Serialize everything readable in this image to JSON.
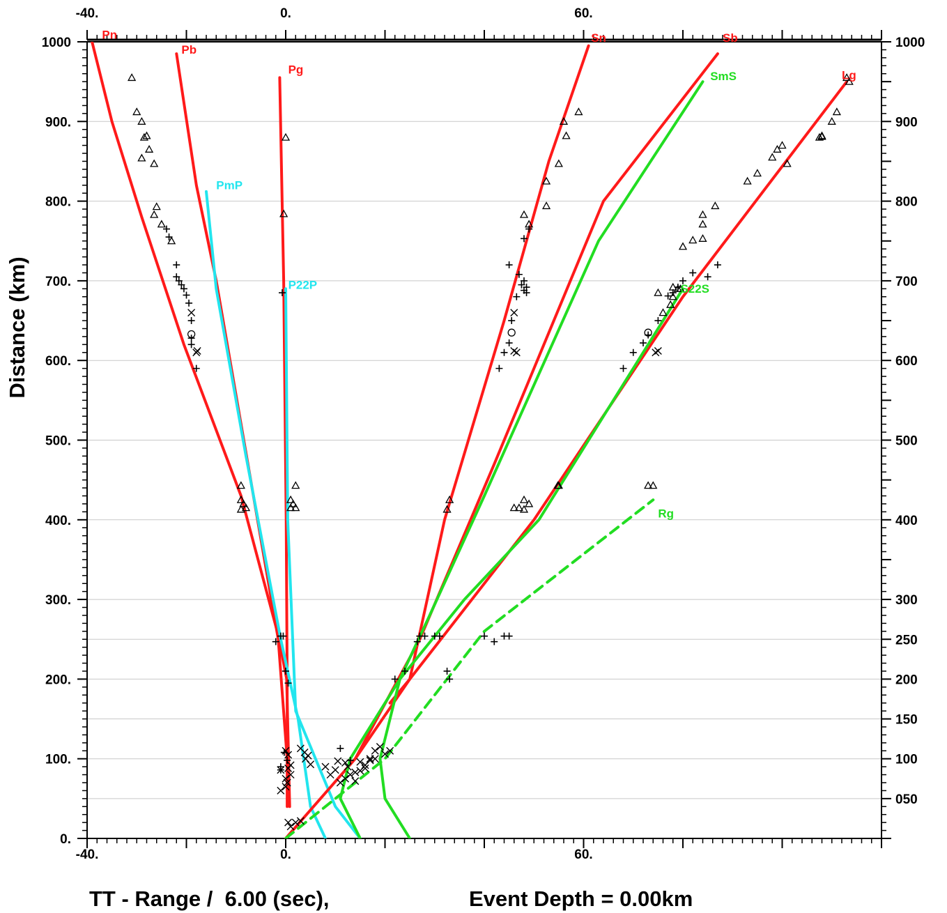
{
  "chart_data": {
    "type": "scatter",
    "title": "",
    "xlabel": "TT - Range /  6.00 (sec),",
    "ylabel": "Distance (km)",
    "depth_label": "Event Depth = 0.00km",
    "xlim": [
      -40,
      120
    ],
    "ylim": [
      0,
      1000
    ],
    "x_ticks": [
      "-40.",
      "0.",
      "60."
    ],
    "x_tick_values": [
      -40,
      0,
      60
    ],
    "y_ticks_left": [
      "0.",
      "100.",
      "200.",
      "300.",
      "400.",
      "500.",
      "600.",
      "700.",
      "800.",
      "900.",
      "1000"
    ],
    "y_tick_values_left": [
      0,
      100,
      200,
      300,
      400,
      500,
      600,
      700,
      800,
      900,
      1000
    ],
    "y_ticks_right": [
      "050",
      "100",
      "150",
      "200",
      "250",
      "300",
      "400",
      "500",
      "600",
      "700",
      "800",
      "900",
      "1000"
    ],
    "y_tick_values_right": [
      50,
      100,
      150,
      200,
      250,
      300,
      400,
      500,
      600,
      700,
      800,
      900,
      1000
    ],
    "grid": true,
    "colors": {
      "P_crust": "#ff1a1a",
      "S_crust": "#22dd22",
      "P_reflect": "#22e5ee",
      "picks": "#000000"
    },
    "series": [
      {
        "name": "Pn",
        "color": "#ff1a1a",
        "style": "solid",
        "points": [
          [
            0.8,
            40
          ],
          [
            0.2,
            200
          ],
          [
            -1.5,
            255
          ],
          [
            -9,
            430
          ],
          [
            -20.5,
            620
          ],
          [
            -29,
            780
          ],
          [
            -35,
            900
          ],
          [
            -39,
            1000
          ]
        ]
      },
      {
        "name": "Pb",
        "color": "#ff1a1a",
        "style": "solid",
        "points": [
          [
            0.3,
            100
          ],
          [
            -1.5,
            250
          ],
          [
            -14,
            700
          ],
          [
            -18,
            820
          ],
          [
            -22,
            985
          ]
        ]
      },
      {
        "name": "Pg",
        "color": "#ff1a1a",
        "style": "solid",
        "points": [
          [
            0.3,
            40
          ],
          [
            0.3,
            200
          ],
          [
            0.1,
            400
          ],
          [
            -0.4,
            700
          ],
          [
            -1.2,
            955
          ]
        ]
      },
      {
        "name": "PmP",
        "color": "#22e5ee",
        "style": "solid",
        "points": [
          [
            8,
            0
          ],
          [
            5,
            40
          ],
          [
            2.5,
            150
          ],
          [
            -1,
            250
          ],
          [
            -8,
            480
          ],
          [
            -14,
            690
          ],
          [
            -16,
            812
          ]
        ]
      },
      {
        "name": "P22P",
        "color": "#22e5ee",
        "style": "solid",
        "points": [
          [
            15,
            0
          ],
          [
            10,
            40
          ],
          [
            2,
            160
          ],
          [
            0.4,
            400
          ],
          [
            0,
            690
          ]
        ]
      },
      {
        "name": "Sn",
        "color": "#ff1a1a",
        "style": "solid",
        "points": [
          [
            21,
            170
          ],
          [
            25,
            200
          ],
          [
            32,
            400
          ],
          [
            44,
            650
          ],
          [
            53,
            850
          ],
          [
            61,
            995
          ]
        ]
      },
      {
        "name": "Sb",
        "color": "#ff1a1a",
        "style": "solid",
        "points": [
          [
            0,
            0
          ],
          [
            14,
            100
          ],
          [
            27,
            250
          ],
          [
            42,
            470
          ],
          [
            64,
            800
          ],
          [
            87,
            985
          ]
        ]
      },
      {
        "name": "Lg",
        "color": "#ff1a1a",
        "style": "solid",
        "points": [
          [
            14,
            100
          ],
          [
            25,
            200
          ],
          [
            50,
            400
          ],
          [
            80,
            680
          ],
          [
            113,
            950
          ]
        ]
      },
      {
        "name": "SmS",
        "color": "#22dd22",
        "style": "solid",
        "points": [
          [
            25,
            0
          ],
          [
            20,
            50
          ],
          [
            19,
            100
          ],
          [
            23,
            200
          ],
          [
            29,
            280
          ],
          [
            40,
            430
          ],
          [
            63,
            750
          ],
          [
            84,
            950
          ]
        ]
      },
      {
        "name": "S22S",
        "color": "#22dd22",
        "style": "solid",
        "points": [
          [
            15,
            0
          ],
          [
            11,
            50
          ],
          [
            13,
            100
          ],
          [
            23,
            200
          ],
          [
            36,
            300
          ],
          [
            51,
            400
          ],
          [
            80,
            690
          ]
        ]
      },
      {
        "name": "Rg",
        "color": "#22dd22",
        "style": "dashed",
        "points": [
          [
            0,
            0
          ],
          [
            20,
            100
          ],
          [
            40,
            260
          ],
          [
            74,
            425
          ]
        ]
      }
    ],
    "phase_labels": [
      {
        "text": "Pn",
        "x": -37,
        "y": 1004,
        "color": "#ff1a1a"
      },
      {
        "text": "Pb",
        "x": -21,
        "y": 985,
        "color": "#ff1a1a"
      },
      {
        "text": "Pg",
        "x": 0.5,
        "y": 960,
        "color": "#ff1a1a"
      },
      {
        "text": "PmP",
        "x": -14,
        "y": 815,
        "color": "#22e5ee"
      },
      {
        "text": "P22P",
        "x": 0.5,
        "y": 690,
        "color": "#22e5ee"
      },
      {
        "text": "Sn",
        "x": 61.5,
        "y": 1000,
        "color": "#ff1a1a"
      },
      {
        "text": "Sb",
        "x": 88,
        "y": 1000,
        "color": "#ff1a1a"
      },
      {
        "text": "SmS",
        "x": 85.5,
        "y": 952,
        "color": "#22dd22"
      },
      {
        "text": "Lg",
        "x": 112,
        "y": 953,
        "color": "#ff1a1a"
      },
      {
        "text": "S22S",
        "x": 79.5,
        "y": 685,
        "color": "#22dd22"
      },
      {
        "text": "Rg",
        "x": 75,
        "y": 403,
        "color": "#22dd22"
      }
    ],
    "picks": {
      "triangle": [
        [
          -31,
          955
        ],
        [
          -30,
          912
        ],
        [
          -29,
          900
        ],
        [
          -28,
          882
        ],
        [
          -28.5,
          880
        ],
        [
          -27.5,
          865
        ],
        [
          -29,
          854
        ],
        [
          -26.5,
          847
        ],
        [
          -26,
          793
        ],
        [
          -26.5,
          783
        ],
        [
          -25,
          771
        ],
        [
          -23,
          750
        ],
        [
          -9,
          443
        ],
        [
          -9,
          425
        ],
        [
          -9,
          413
        ],
        [
          -8.5,
          420
        ],
        [
          -8,
          415
        ],
        [
          0,
          880
        ],
        [
          -0.4,
          784
        ],
        [
          2,
          443
        ],
        [
          1,
          425
        ],
        [
          1.5,
          420
        ],
        [
          1,
          415
        ],
        [
          2,
          415
        ],
        [
          59,
          912
        ],
        [
          56,
          900
        ],
        [
          56.5,
          882
        ],
        [
          55,
          847
        ],
        [
          52.5,
          825
        ],
        [
          52.5,
          794
        ],
        [
          48,
          783
        ],
        [
          49,
          771
        ],
        [
          33,
          425
        ],
        [
          32.5,
          413
        ],
        [
          48,
          425
        ],
        [
          46,
          415
        ],
        [
          47,
          415
        ],
        [
          48,
          413
        ],
        [
          49,
          420
        ],
        [
          55,
          443
        ],
        [
          54.8,
          443
        ],
        [
          93,
          825
        ],
        [
          95,
          835
        ],
        [
          101,
          847
        ],
        [
          98,
          855
        ],
        [
          99,
          865
        ],
        [
          100,
          870
        ],
        [
          108,
          882
        ],
        [
          107.5,
          880
        ],
        [
          108,
          881
        ],
        [
          110,
          900
        ],
        [
          111,
          912
        ],
        [
          113,
          955
        ],
        [
          113.5,
          950
        ],
        [
          86.5,
          794
        ],
        [
          84,
          783
        ],
        [
          84,
          771
        ],
        [
          80,
          743
        ],
        [
          82,
          751
        ],
        [
          84,
          753
        ],
        [
          79.5,
          690
        ],
        [
          78,
          680
        ],
        [
          77.5,
          670
        ],
        [
          76,
          660
        ],
        [
          74,
          443
        ],
        [
          73,
          443
        ],
        [
          75,
          685
        ],
        [
          78,
          692
        ],
        [
          79,
          690
        ]
      ],
      "plus": [
        [
          -24,
          765
        ],
        [
          -23.5,
          755
        ],
        [
          -22,
          720
        ],
        [
          -22,
          705
        ],
        [
          -21.5,
          700
        ],
        [
          -21,
          695
        ],
        [
          -20.5,
          690
        ],
        [
          -20,
          682
        ],
        [
          -19.5,
          672
        ],
        [
          -19,
          650
        ],
        [
          -19,
          628
        ],
        [
          -19,
          620
        ],
        [
          -18,
          590
        ],
        [
          -1,
          254
        ],
        [
          -2,
          247
        ],
        [
          -0.5,
          254
        ],
        [
          0,
          210
        ],
        [
          0.5,
          195
        ],
        [
          47,
          708
        ],
        [
          48,
          700
        ],
        [
          47.5,
          695
        ],
        [
          48.5,
          692
        ],
        [
          48,
          688
        ],
        [
          48.5,
          685
        ],
        [
          46.5,
          680
        ],
        [
          45.5,
          650
        ],
        [
          45,
          622
        ],
        [
          44,
          610
        ],
        [
          43,
          590
        ],
        [
          49,
          765
        ],
        [
          48,
          753
        ],
        [
          45,
          720
        ],
        [
          27,
          254
        ],
        [
          26.5,
          247
        ],
        [
          28,
          254
        ],
        [
          30,
          254
        ],
        [
          31,
          254
        ],
        [
          22,
          200
        ],
        [
          24,
          210
        ],
        [
          33,
          200
        ],
        [
          32.5,
          210
        ],
        [
          40,
          254
        ],
        [
          42,
          247
        ],
        [
          44,
          254
        ],
        [
          45,
          254
        ],
        [
          87,
          720
        ],
        [
          85,
          705
        ],
        [
          82,
          710
        ],
        [
          80,
          700
        ],
        [
          79,
          692
        ],
        [
          78,
          685
        ],
        [
          77,
          681
        ],
        [
          75,
          650
        ],
        [
          73,
          632
        ],
        [
          72,
          622
        ],
        [
          70,
          610
        ],
        [
          68,
          590
        ],
        [
          -1,
          86
        ],
        [
          -1,
          90
        ],
        [
          0.3,
          98
        ],
        [
          -0.3,
          108
        ],
        [
          11,
          113
        ],
        [
          13,
          98
        ],
        [
          -0.7,
          685
        ]
      ],
      "cross": [
        [
          -19,
          660
        ],
        [
          -18,
          610
        ],
        [
          -17.8,
          612
        ],
        [
          46,
          660
        ],
        [
          46,
          612
        ],
        [
          46.5,
          610
        ],
        [
          75,
          612
        ],
        [
          74.5,
          610
        ],
        [
          -1,
          86
        ],
        [
          0,
          110
        ],
        [
          0.5,
          105
        ],
        [
          1,
          92
        ],
        [
          0.5,
          88
        ],
        [
          0,
          75
        ],
        [
          0.3,
          70
        ],
        [
          1,
          80
        ],
        [
          3,
          113
        ],
        [
          3.8,
          108
        ],
        [
          4.5,
          104
        ],
        [
          4,
          100
        ],
        [
          5,
          93
        ],
        [
          8,
          90
        ],
        [
          9,
          80
        ],
        [
          10,
          86
        ],
        [
          10.5,
          97
        ],
        [
          12,
          95
        ],
        [
          12.5,
          90
        ],
        [
          14,
          83
        ],
        [
          15,
          96
        ],
        [
          16,
          92
        ],
        [
          17,
          98
        ],
        [
          18,
          100
        ],
        [
          20,
          106
        ],
        [
          21,
          110
        ],
        [
          19,
          115
        ],
        [
          18,
          110
        ],
        [
          17,
          100
        ],
        [
          15,
          85
        ],
        [
          13,
          80
        ],
        [
          12,
          75
        ],
        [
          11,
          70
        ],
        [
          14,
          72
        ],
        [
          16,
          88
        ],
        [
          0.5,
          20
        ],
        [
          2,
          20
        ],
        [
          3,
          22
        ],
        [
          1,
          15
        ],
        [
          -1,
          60
        ],
        [
          0,
          65
        ]
      ],
      "circle": [
        [
          -19,
          633
        ],
        [
          45.5,
          635
        ],
        [
          73,
          635
        ]
      ]
    }
  }
}
